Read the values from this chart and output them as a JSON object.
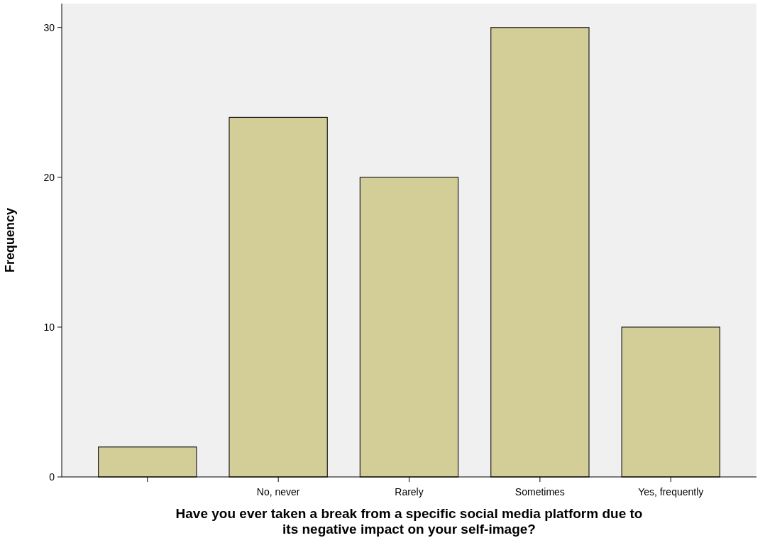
{
  "chart_data": {
    "type": "bar",
    "xlabel": "Have you ever taken a break from a specific social media platform due to its negative impact on your self-image?",
    "ylabel": "Frequency",
    "categories": [
      null,
      "No, never",
      "Rarely",
      "Sometimes",
      "Yes, frequently"
    ],
    "values": [
      2,
      24,
      20,
      30,
      10
    ],
    "color": "#d3ce97",
    "ylim": [
      0,
      31.6
    ],
    "yticks": [
      0,
      10,
      20,
      30
    ]
  }
}
